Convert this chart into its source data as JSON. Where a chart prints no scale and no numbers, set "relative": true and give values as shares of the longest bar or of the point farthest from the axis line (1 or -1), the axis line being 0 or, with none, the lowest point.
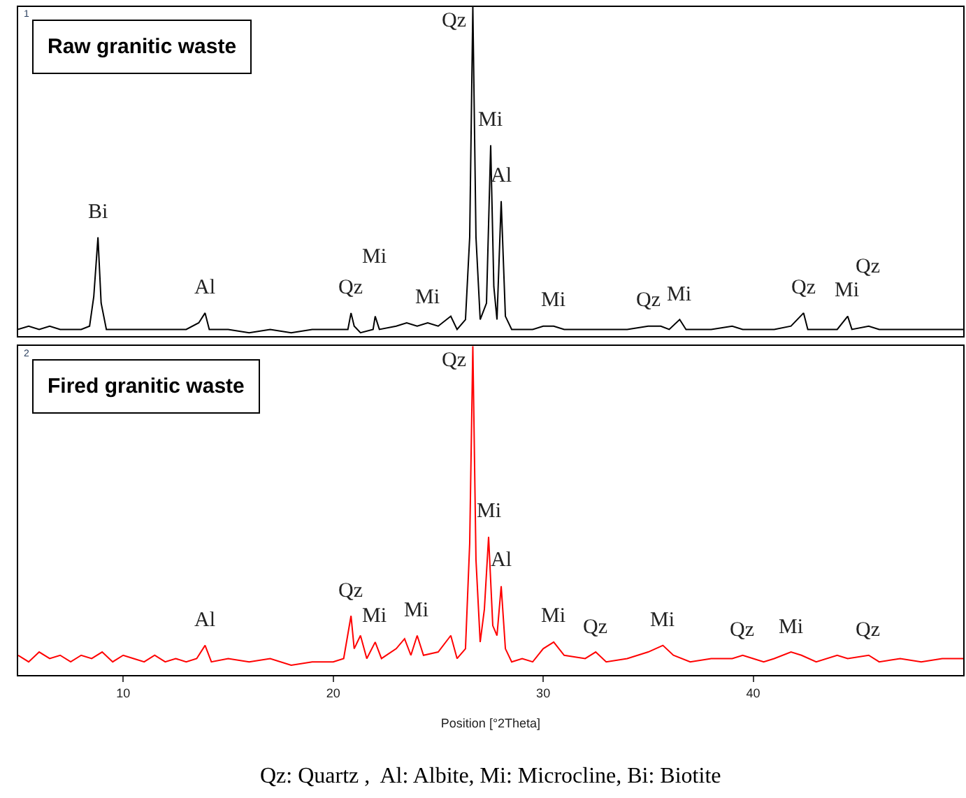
{
  "chart_data": [
    {
      "type": "line",
      "relative": true,
      "xlim": [
        5,
        50
      ],
      "xticks": [
        10,
        20,
        30,
        40
      ],
      "tick_labels": false,
      "x": [
        5,
        5.5,
        6,
        6.5,
        7,
        7.5,
        8,
        8.4,
        8.6,
        8.8,
        8.95,
        9.2,
        10,
        11,
        12,
        13,
        13.6,
        13.9,
        14.1,
        15,
        16,
        17,
        18,
        19,
        20,
        20.7,
        20.85,
        21.0,
        21.3,
        21.9,
        22.0,
        22.2,
        23,
        23.5,
        24,
        24.5,
        25,
        25.6,
        25.9,
        26.3,
        26.5,
        26.65,
        26.8,
        27.0,
        27.3,
        27.5,
        27.65,
        27.8,
        28.0,
        28.2,
        28.5,
        29,
        29.5,
        30,
        30.5,
        31,
        32,
        33,
        34,
        35,
        35.6,
        36,
        36.5,
        36.8,
        37.5,
        38,
        39,
        39.5,
        40,
        41,
        41.8,
        42.4,
        42.6,
        43,
        44,
        44.5,
        44.7,
        45.5,
        46,
        47,
        48,
        49,
        50
      ],
      "series": [
        {
          "color": "#000000",
          "values": [
            0.02,
            0.03,
            0.02,
            0.03,
            0.02,
            0.02,
            0.02,
            0.03,
            0.12,
            0.3,
            0.1,
            0.02,
            0.02,
            0.02,
            0.02,
            0.02,
            0.04,
            0.07,
            0.02,
            0.02,
            0.01,
            0.02,
            0.01,
            0.02,
            0.02,
            0.02,
            0.07,
            0.03,
            0.01,
            0.02,
            0.06,
            0.02,
            0.03,
            0.04,
            0.03,
            0.04,
            0.03,
            0.06,
            0.02,
            0.05,
            0.3,
            1.0,
            0.3,
            0.05,
            0.1,
            0.58,
            0.15,
            0.05,
            0.41,
            0.06,
            0.02,
            0.02,
            0.02,
            0.03,
            0.03,
            0.02,
            0.02,
            0.02,
            0.02,
            0.03,
            0.03,
            0.02,
            0.05,
            0.02,
            0.02,
            0.02,
            0.03,
            0.02,
            0.02,
            0.02,
            0.03,
            0.07,
            0.02,
            0.02,
            0.02,
            0.06,
            0.02,
            0.03,
            0.02,
            0.02,
            0.02,
            0.02,
            0.02
          ]
        }
      ],
      "annotations": [
        "1",
        "Raw granitic waste",
        {
          "text": "Qz",
          "x": 26.65,
          "y": 1.0
        },
        {
          "text": "Mi",
          "x": 27.5,
          "y": 0.58
        },
        {
          "text": "Al",
          "x": 28.0,
          "y": 0.41
        },
        {
          "text": "Bi",
          "x": 8.8,
          "y": 0.3
        },
        {
          "text": "Al",
          "x": 13.9,
          "y": 0.07
        },
        {
          "text": "Qz",
          "x": 20.85,
          "y": 0.07
        },
        {
          "text": "Mi",
          "x": 22.0,
          "y": 0.06
        },
        {
          "text": "Mi",
          "x": 24.5,
          "y": 0.04
        },
        {
          "text": "Mi",
          "x": 30.5,
          "y": 0.03
        },
        {
          "text": "Qz",
          "x": 35.0,
          "y": 0.03
        },
        {
          "text": "Mi",
          "x": 36.5,
          "y": 0.05
        },
        {
          "text": "Qz",
          "x": 42.4,
          "y": 0.07
        },
        {
          "text": "Mi",
          "x": 44.5,
          "y": 0.06
        },
        {
          "text": "Qz",
          "x": 45.5,
          "y": 0.03
        }
      ]
    },
    {
      "type": "line",
      "relative": true,
      "xlim": [
        5,
        50
      ],
      "xticks": [
        10,
        20,
        30,
        40
      ],
      "tick_labels": "x",
      "xlabel": "Position [°2Theta]",
      "x": [
        5,
        5.5,
        6,
        6.5,
        7,
        7.5,
        8,
        8.5,
        9,
        9.5,
        10,
        10.5,
        11,
        11.5,
        12,
        12.5,
        13,
        13.5,
        13.9,
        14.2,
        15,
        16,
        17,
        18,
        19,
        20,
        20.5,
        20.85,
        21.0,
        21.3,
        21.6,
        22.0,
        22.3,
        23,
        23.4,
        23.7,
        24.0,
        24.3,
        25,
        25.6,
        25.9,
        26.3,
        26.5,
        26.65,
        26.8,
        27.0,
        27.2,
        27.4,
        27.6,
        27.8,
        28.0,
        28.2,
        28.5,
        29,
        29.5,
        30,
        30.5,
        31,
        32,
        32.5,
        33,
        34,
        35,
        35.7,
        36.2,
        37,
        38,
        39,
        39.5,
        40,
        40.5,
        41,
        41.8,
        42.3,
        43,
        44,
        44.5,
        45.5,
        46,
        47,
        48,
        49,
        50
      ],
      "series": [
        {
          "color": "#ff0000",
          "values": [
            0.06,
            0.04,
            0.07,
            0.05,
            0.06,
            0.04,
            0.06,
            0.05,
            0.07,
            0.04,
            0.06,
            0.05,
            0.04,
            0.06,
            0.04,
            0.05,
            0.04,
            0.05,
            0.09,
            0.04,
            0.05,
            0.04,
            0.05,
            0.03,
            0.04,
            0.04,
            0.05,
            0.18,
            0.08,
            0.12,
            0.05,
            0.1,
            0.05,
            0.08,
            0.11,
            0.06,
            0.12,
            0.06,
            0.07,
            0.12,
            0.05,
            0.08,
            0.4,
            1.0,
            0.35,
            0.1,
            0.2,
            0.42,
            0.15,
            0.12,
            0.27,
            0.08,
            0.04,
            0.05,
            0.04,
            0.08,
            0.1,
            0.06,
            0.05,
            0.07,
            0.04,
            0.05,
            0.07,
            0.09,
            0.06,
            0.04,
            0.05,
            0.05,
            0.06,
            0.05,
            0.04,
            0.05,
            0.07,
            0.06,
            0.04,
            0.06,
            0.05,
            0.06,
            0.04,
            0.05,
            0.04,
            0.05,
            0.05
          ]
        }
      ],
      "annotations": [
        "2",
        "Fired granitic waste",
        "Qz: Quartz ,  Al: Albite, Mi: Microcline, Bi: Biotite",
        {
          "text": "Qz",
          "x": 26.65,
          "y": 1.0
        },
        {
          "text": "Mi",
          "x": 27.4,
          "y": 0.42
        },
        {
          "text": "Al",
          "x": 28.0,
          "y": 0.27
        },
        {
          "text": "Al",
          "x": 13.9,
          "y": 0.09
        },
        {
          "text": "Qz",
          "x": 20.85,
          "y": 0.18
        },
        {
          "text": "Mi",
          "x": 22.0,
          "y": 0.1
        },
        {
          "text": "Mi",
          "x": 24.0,
          "y": 0.12
        },
        {
          "text": "Mi",
          "x": 30.5,
          "y": 0.1
        },
        {
          "text": "Qz",
          "x": 32.5,
          "y": 0.07
        },
        {
          "text": "Mi",
          "x": 35.7,
          "y": 0.09
        },
        {
          "text": "Qz",
          "x": 39.5,
          "y": 0.06
        },
        {
          "text": "Mi",
          "x": 41.8,
          "y": 0.07
        },
        {
          "text": "Qz",
          "x": 45.5,
          "y": 0.06
        }
      ]
    }
  ]
}
